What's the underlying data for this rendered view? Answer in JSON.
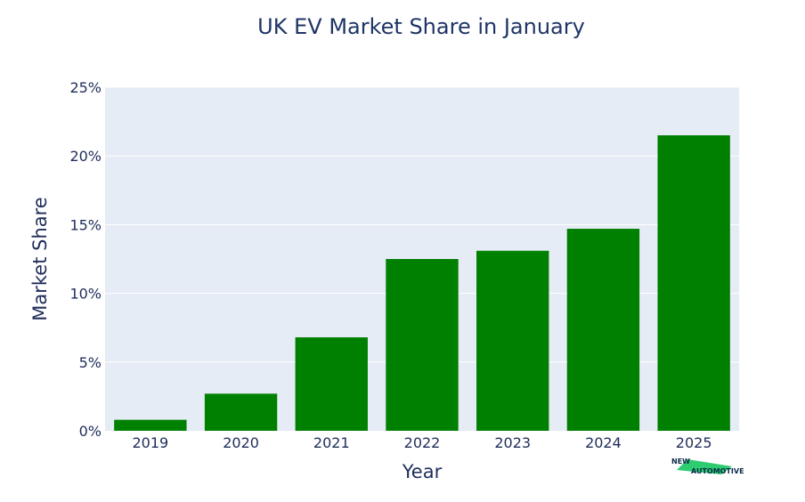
{
  "chart_data": {
    "type": "bar",
    "title": "UK EV Market Share in January",
    "xlabel": "Year",
    "ylabel": "Market Share",
    "categories": [
      "2019",
      "2020",
      "2021",
      "2022",
      "2023",
      "2024",
      "2025"
    ],
    "values": [
      0.8,
      2.7,
      6.8,
      12.5,
      13.1,
      14.7,
      21.5
    ],
    "ylim": [
      0,
      25
    ],
    "yticks": [
      0,
      5,
      10,
      15,
      20,
      25
    ],
    "ytick_labels": [
      "0%",
      "5%",
      "10%",
      "15%",
      "20%",
      "25%"
    ],
    "grid": true,
    "bar_color": "#008000",
    "plot_background": "#e5ecf6",
    "legend": "none"
  },
  "logo": {
    "line1": "NEW",
    "line2": "AUTOMOTIVE",
    "accent_color": "#2ecc71"
  }
}
